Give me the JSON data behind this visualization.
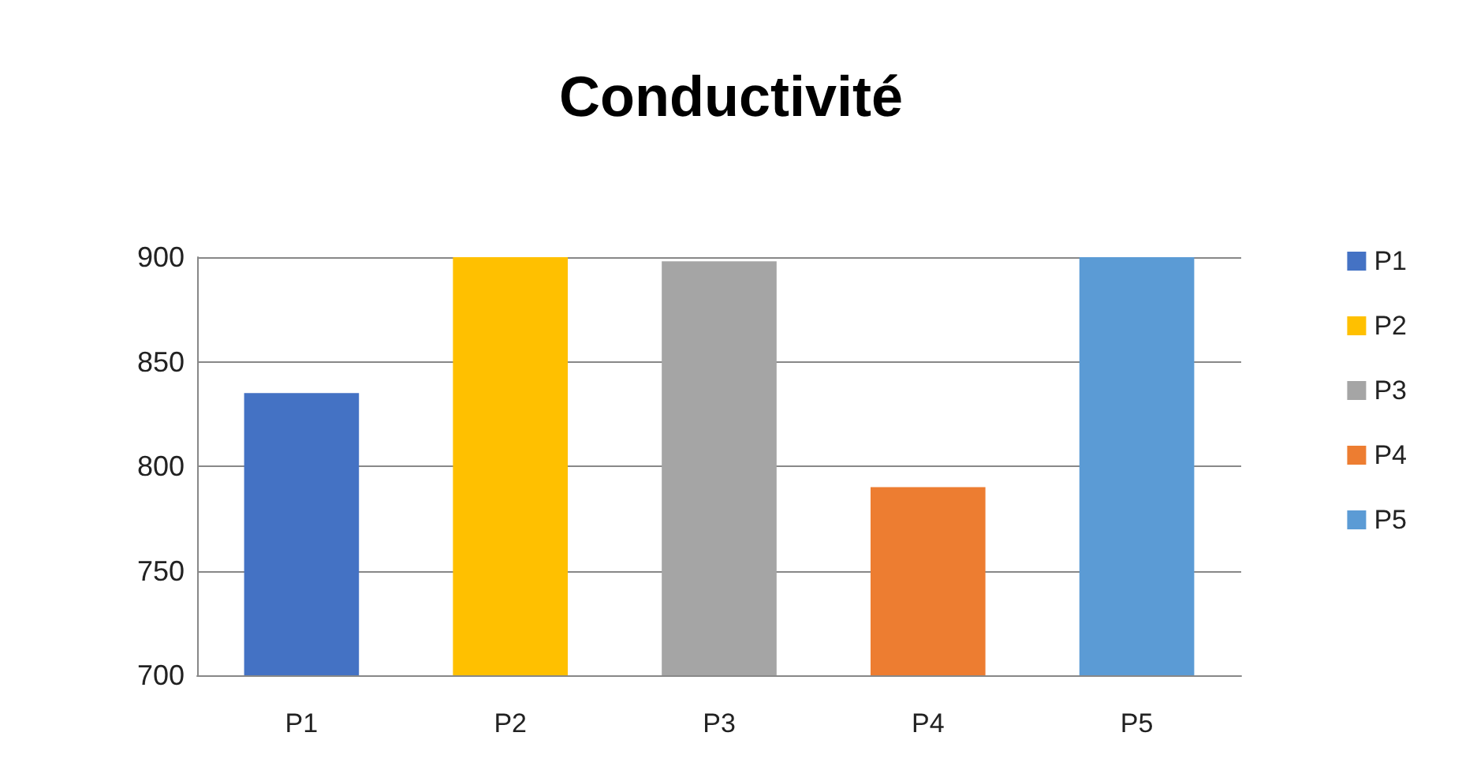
{
  "chart_data": {
    "type": "bar",
    "title": "Conductivité",
    "categories": [
      "P1",
      "P2",
      "P3",
      "P4",
      "P5"
    ],
    "series": [
      {
        "name": "P1",
        "color": "#4472c4",
        "values": [
          835,
          null,
          null,
          null,
          null
        ]
      },
      {
        "name": "P2",
        "color": "#ffc000",
        "values": [
          null,
          900,
          null,
          null,
          null
        ]
      },
      {
        "name": "P3",
        "color": "#a5a5a5",
        "values": [
          null,
          null,
          898,
          null,
          null
        ]
      },
      {
        "name": "P4",
        "color": "#ed7d31",
        "values": [
          null,
          null,
          null,
          790,
          null
        ]
      },
      {
        "name": "P5",
        "color": "#5b9bd5",
        "values": [
          null,
          null,
          null,
          null,
          900
        ]
      }
    ],
    "ylim": [
      700,
      900
    ],
    "yticks": [
      700,
      750,
      800,
      850,
      900
    ],
    "grid": true,
    "legend": "right"
  }
}
